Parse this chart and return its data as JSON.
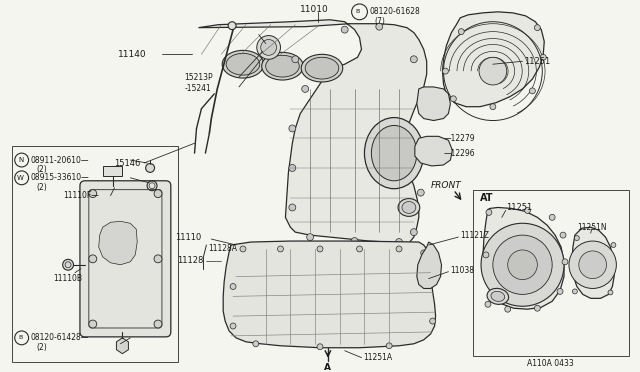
{
  "bg_color": "#f5f5f0",
  "line_color": "#2a2a2a",
  "text_color": "#1a1a1a",
  "lw": 0.8,
  "parts": {
    "block_label": "11010",
    "dipstick_label": "11140",
    "oil_tube_label": "15146",
    "seal_label1": "15213P",
    "seal_label2": "15241",
    "cover_label": "11251",
    "plate1_label": "12279",
    "plate2_label": "12296",
    "pan_assy_label": "11110",
    "gasket_label": "11128A",
    "pan_label": "11128",
    "drain_label": "11038",
    "tube_label": "11121Z",
    "plug_label": "11251A",
    "arrow_label": "A",
    "front_label": "FRONT",
    "bolt1_label": "08911-20610",
    "bolt1_qty": "(2)",
    "bolt2_label": "08915-33610",
    "bolt2_qty": "(2)",
    "gasket_f_label": "11110F",
    "gasket_b_label": "11110B",
    "bolt3_label": "08120-61428",
    "bolt3_qty": "(2)",
    "bolt4_label": "08120-61628",
    "bolt4_qty": "(7)",
    "at_label": "AT",
    "at_cover_label": "11251",
    "at_inner_label": "11251N",
    "ref": "A110A 0433"
  }
}
